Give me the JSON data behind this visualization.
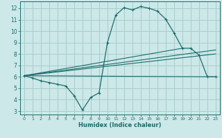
{
  "xlabel": "Humidex (Indice chaleur)",
  "background_color": "#cce8e8",
  "grid_color": "#aacccc",
  "line_color": "#1a6b6b",
  "xlim": [
    -0.5,
    23.5
  ],
  "ylim": [
    2.7,
    12.6
  ],
  "xticks": [
    0,
    1,
    2,
    3,
    4,
    5,
    6,
    7,
    8,
    9,
    10,
    11,
    12,
    13,
    14,
    15,
    16,
    17,
    18,
    19,
    20,
    21,
    22,
    23
  ],
  "yticks": [
    3,
    4,
    5,
    6,
    7,
    8,
    9,
    10,
    11,
    12
  ],
  "curve1_x": [
    0,
    1,
    2,
    3,
    4,
    5,
    6,
    7,
    8,
    9,
    10,
    11,
    12,
    13,
    14,
    15,
    16,
    17,
    18,
    19,
    20,
    21,
    22,
    23
  ],
  "curve1_y": [
    6.1,
    5.9,
    5.65,
    5.5,
    5.35,
    5.2,
    4.35,
    3.1,
    4.2,
    4.6,
    9.0,
    11.4,
    12.05,
    11.85,
    12.15,
    12.0,
    11.75,
    11.05,
    9.85,
    8.5,
    8.5,
    7.9,
    6.0,
    6.0
  ],
  "line1_x": [
    0,
    23
  ],
  "line1_y": [
    6.1,
    6.0
  ],
  "line2_x": [
    0,
    23
  ],
  "line2_y": [
    6.1,
    8.0
  ],
  "line3_x": [
    0,
    23
  ],
  "line3_y": [
    6.1,
    8.35
  ],
  "line4_x": [
    0,
    19
  ],
  "line4_y": [
    6.1,
    8.5
  ]
}
